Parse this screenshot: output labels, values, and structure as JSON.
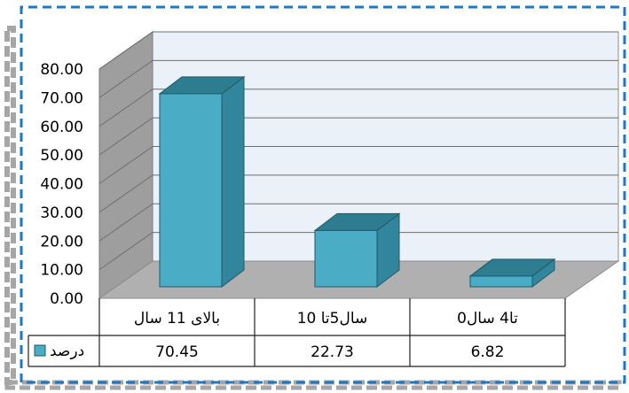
{
  "chart_data": {
    "type": "bar",
    "categories": [
      "بالای 11 سال",
      "سال5تا 10",
      "0تا4 سال"
    ],
    "series": [
      {
        "name": "درصد",
        "values": [
          70.45,
          22.73,
          6.82
        ],
        "color": "#4BACC6"
      }
    ],
    "value_labels": [
      "70.45",
      "22.73",
      "6.82"
    ],
    "y_ticks": [
      "0.00",
      "10.00",
      "20.00",
      "30.00",
      "40.00",
      "50.00",
      "60.00",
      "70.00",
      "80.00"
    ],
    "ylim": [
      0,
      80
    ],
    "grid": true,
    "data_table": true,
    "three_d": true,
    "colors": {
      "bar_front": "#4BACC6",
      "bar_side": "#31859C",
      "bar_top": "#2E7C8F",
      "back_wall": "#EAF1F8",
      "side_wall": "#9E9E9E",
      "floor": "#B0B0B0",
      "frame_blue": "#1F77C4",
      "frame_gray": "#A6A6A6"
    }
  }
}
